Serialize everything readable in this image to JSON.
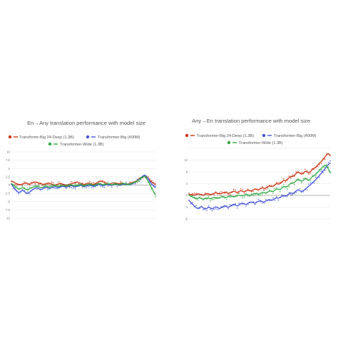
{
  "colors": {
    "red": "#cc3311",
    "blue": "#4455dd",
    "green": "#33aa44",
    "grid": "#e6e6e6",
    "zero": "#9a9a9a"
  },
  "charts": [
    {
      "type": "line",
      "title": "En→Any translation performance with model size",
      "ylim": [
        -10,
        10
      ],
      "yticks": [
        10,
        7.5,
        5,
        2.5,
        0,
        -2.5,
        -5,
        -7.5,
        -10
      ],
      "ytick_labels": [
        "10",
        "7.5",
        "5",
        "2.5",
        "0",
        "-2.5",
        "-5",
        "-7.5",
        "-10"
      ],
      "legend": {
        "placement": "top",
        "rows": [
          [
            "Transformr-Big 24-Deep (1.3B)",
            "Transformer-Big (400M)"
          ],
          [
            "Transformer-Wide (1.3B)"
          ]
        ]
      },
      "series": [
        {
          "name": "Transformr-Big 24-Deep (1.3B)",
          "color": "red",
          "values": [
            1.2,
            0.9,
            0.6,
            0.4,
            0.2,
            0.1,
            0.3,
            0.5,
            0.6,
            0.4,
            0.3,
            0.5,
            0.7,
            0.9,
            0.8,
            0.6,
            0.4,
            0.3,
            0.2,
            0.4,
            0.6,
            0.5,
            0.3,
            0.1,
            0.0,
            0.2,
            0.4,
            0.5,
            0.3,
            0.1,
            -0.1,
            0.1,
            0.3,
            0.4,
            0.6,
            0.8,
            0.9,
            0.7,
            0.5,
            0.3,
            0.2,
            0.4,
            0.6,
            0.5,
            0.3,
            0.2,
            0.4,
            0.7,
            1.0,
            1.2,
            1.0,
            0.8,
            0.6,
            0.4,
            0.3,
            0.5,
            0.7,
            0.6,
            0.4,
            0.3,
            0.5,
            0.6,
            0.4,
            0.2,
            0.3,
            0.5,
            0.7,
            0.9,
            1.1,
            1.4,
            1.8,
            2.1,
            2.4,
            2.6,
            2.3,
            1.9,
            1.4,
            0.9,
            0.5,
            0.2
          ]
        },
        {
          "name": "Transformer-Big (400M)",
          "color": "blue",
          "values": [
            0.2,
            -0.5,
            -1.2,
            -1.8,
            -2.3,
            -2.0,
            -1.6,
            -1.9,
            -2.3,
            -2.6,
            -2.1,
            -1.6,
            -1.3,
            -1.0,
            -0.8,
            -1.1,
            -1.4,
            -1.2,
            -0.9,
            -0.7,
            -0.9,
            -1.1,
            -0.8,
            -0.6,
            -0.5,
            -0.7,
            -0.9,
            -0.6,
            -0.4,
            -0.5,
            -0.7,
            -0.5,
            -0.3,
            -0.2,
            -0.4,
            -0.6,
            -0.4,
            -0.2,
            -0.1,
            -0.3,
            -0.5,
            -0.3,
            -0.1,
            0.0,
            -0.2,
            -0.4,
            -0.2,
            0.0,
            0.2,
            0.0,
            -0.2,
            -0.1,
            0.1,
            0.2,
            0.0,
            -0.1,
            0.1,
            0.3,
            0.1,
            -0.1,
            0.0,
            0.2,
            0.4,
            0.3,
            0.1,
            0.2,
            0.4,
            0.6,
            0.9,
            1.3,
            1.7,
            2.2,
            2.7,
            3.0,
            2.6,
            1.9,
            1.0,
            0.3,
            -0.3,
            -0.8
          ]
        },
        {
          "name": "Transformer-Wide (1.3B)",
          "color": "green",
          "values": [
            0.4,
            0.1,
            -0.4,
            -0.9,
            -1.3,
            -1.1,
            -0.8,
            -1.0,
            -1.3,
            -1.5,
            -1.1,
            -0.8,
            -0.6,
            -0.5,
            -0.4,
            -0.6,
            -0.8,
            -0.7,
            -0.5,
            -0.3,
            -0.5,
            -0.6,
            -0.4,
            -0.2,
            -0.1,
            -0.3,
            -0.5,
            -0.3,
            -0.1,
            -0.2,
            -0.4,
            -0.2,
            0.0,
            0.1,
            -0.1,
            -0.3,
            -0.1,
            0.1,
            0.2,
            0.0,
            -0.2,
            0.0,
            0.2,
            0.3,
            0.1,
            -0.1,
            0.1,
            0.3,
            0.5,
            0.3,
            0.1,
            0.2,
            0.3,
            0.4,
            0.2,
            0.1,
            0.2,
            0.4,
            0.3,
            0.1,
            0.2,
            0.4,
            0.5,
            0.4,
            0.2,
            0.3,
            0.5,
            0.7,
            1.0,
            1.3,
            1.6,
            2.0,
            2.4,
            2.6,
            2.0,
            1.2,
            0.2,
            -0.9,
            -2.0,
            -3.0
          ]
        }
      ]
    },
    {
      "type": "line",
      "title": "Any→En translation performance with model size",
      "ylim": [
        -8,
        16
      ],
      "yticks": [
        16,
        12,
        8,
        4,
        0,
        -4,
        -8
      ],
      "ytick_labels": [
        "",
        "12",
        "8",
        "4",
        "0",
        "-4",
        "-8"
      ],
      "legend": {
        "placement": "top",
        "rows": [
          [
            "Transformer-Big 24-Deep (1.3B)",
            "Transformer-Big (400M)"
          ],
          [
            "Transformer-Wide (1.3B)"
          ]
        ]
      },
      "series": [
        {
          "name": "Transformer-Big 24-Deep (1.3B)",
          "color": "red",
          "values": [
            0.4,
            0.3,
            0.2,
            0.1,
            0.3,
            0.5,
            0.4,
            0.2,
            0.1,
            0.3,
            0.6,
            0.5,
            0.3,
            0.4,
            0.7,
            0.9,
            0.7,
            0.5,
            0.6,
            0.9,
            1.1,
            0.9,
            0.7,
            0.9,
            1.2,
            1.4,
            1.2,
            1.0,
            1.3,
            1.6,
            1.4,
            1.2,
            1.5,
            1.8,
            1.6,
            1.5,
            1.9,
            2.2,
            2.0,
            1.9,
            2.3,
            2.6,
            2.4,
            2.5,
            2.9,
            3.2,
            3.0,
            3.1,
            3.6,
            4.0,
            3.8,
            4.0,
            4.6,
            5.1,
            5.0,
            5.4,
            6.0,
            6.5,
            6.4,
            6.8,
            7.5,
            8.0,
            7.6,
            7.2,
            7.6,
            8.2,
            8.0,
            7.7,
            8.1,
            8.8,
            9.2,
            9.6,
            10.3,
            11.0,
            11.5,
            12.2,
            13.0,
            13.8,
            14.2,
            13.6
          ]
        },
        {
          "name": "Transformer-Big (400M)",
          "color": "blue",
          "values": [
            -1.8,
            -2.3,
            -3.0,
            -3.6,
            -4.2,
            -4.5,
            -4.1,
            -3.8,
            -4.3,
            -4.7,
            -4.4,
            -4.0,
            -4.3,
            -4.6,
            -4.2,
            -3.9,
            -4.1,
            -4.5,
            -4.2,
            -3.8,
            -3.5,
            -3.8,
            -4.1,
            -3.7,
            -3.3,
            -3.0,
            -3.3,
            -3.6,
            -3.2,
            -2.8,
            -2.6,
            -2.9,
            -3.1,
            -2.7,
            -2.4,
            -2.2,
            -2.5,
            -2.7,
            -2.3,
            -2.0,
            -1.8,
            -2.1,
            -2.3,
            -1.9,
            -1.6,
            -1.4,
            -1.7,
            -1.5,
            -1.1,
            -0.8,
            -1.0,
            -0.7,
            -0.3,
            0.0,
            -0.3,
            0.1,
            0.5,
            0.9,
            0.6,
            1.0,
            1.5,
            1.9,
            1.6,
            1.3,
            1.6,
            2.1,
            2.6,
            3.1,
            3.6,
            4.2,
            4.8,
            5.4,
            6.1,
            6.8,
            7.5,
            8.3,
            9.0,
            9.8,
            10.5,
            11.0
          ]
        },
        {
          "name": "Transformer-Wide (1.3B)",
          "color": "green",
          "values": [
            0.1,
            -0.2,
            -0.6,
            -0.9,
            -1.2,
            -1.0,
            -0.8,
            -1.1,
            -1.3,
            -1.1,
            -0.9,
            -1.0,
            -1.2,
            -0.9,
            -0.7,
            -0.8,
            -1.0,
            -0.8,
            -0.5,
            -0.4,
            -0.6,
            -0.7,
            -0.4,
            -0.2,
            -0.3,
            -0.5,
            -0.3,
            0.0,
            0.1,
            -0.1,
            -0.2,
            0.1,
            0.3,
            0.2,
            0.0,
            0.2,
            0.5,
            0.7,
            0.5,
            0.4,
            0.7,
            1.0,
            0.9,
            0.8,
            1.1,
            1.5,
            1.4,
            1.3,
            1.7,
            2.2,
            2.1,
            2.0,
            2.5,
            3.0,
            2.9,
            3.0,
            3.6,
            4.2,
            4.1,
            4.4,
            5.0,
            5.6,
            5.2,
            4.8,
            5.1,
            5.7,
            5.4,
            5.1,
            5.6,
            6.3,
            6.8,
            7.2,
            7.9,
            8.5,
            9.1,
            9.8,
            10.2,
            10.0,
            9.0,
            7.6
          ]
        }
      ]
    }
  ],
  "chart_data": [
    {
      "type": "line",
      "title": "En→Any translation performance with model size",
      "ylim": [
        -10,
        10
      ],
      "grid": true,
      "legend_placement": "top",
      "series": [
        {
          "name": "Transformr-Big 24-Deep (1.3B)"
        },
        {
          "name": "Transformer-Big (400M)"
        },
        {
          "name": "Transformer-Wide (1.3B)"
        }
      ]
    },
    {
      "type": "line",
      "title": "Any→En translation performance with model size",
      "ylim": [
        -8,
        16
      ],
      "grid": true,
      "legend_placement": "top",
      "series": [
        {
          "name": "Transformer-Big 24-Deep (1.3B)"
        },
        {
          "name": "Transformer-Big (400M)"
        },
        {
          "name": "Transformer-Wide (1.3B)"
        }
      ]
    }
  ]
}
